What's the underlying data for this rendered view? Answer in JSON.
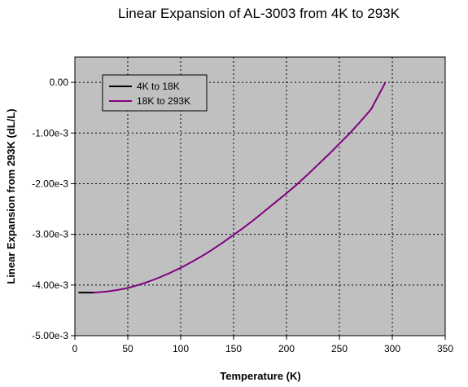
{
  "chart_data": {
    "type": "line",
    "title": "Linear Expansion of AL-3003 from 4K to 293K",
    "xlabel": "Temperature (K)",
    "ylabel": "Linear Expansion from 293K (dL/L)",
    "xlim": [
      0,
      350
    ],
    "ylim": [
      -0.005,
      0.0005
    ],
    "x_ticks": [
      0,
      50,
      100,
      150,
      200,
      250,
      300,
      350
    ],
    "x_tick_labels": [
      "0",
      "50",
      "100",
      "150",
      "200",
      "250",
      "300",
      "350"
    ],
    "y_ticks": [
      0.0,
      -0.001,
      -0.002,
      -0.003,
      -0.004,
      -0.005
    ],
    "y_tick_labels": [
      "0.00",
      "-1.00e-3",
      "-2.00e-3",
      "-3.00e-3",
      "-4.00e-3",
      "-5.00e-3"
    ],
    "grid": true,
    "plot_background": "#c0c0c0",
    "legend_position": "top-left",
    "series": [
      {
        "name": "4K to 18K",
        "color": "#000000",
        "x": [
          4,
          8,
          12,
          15,
          18
        ],
        "y": [
          -0.00415,
          -0.00415,
          -0.00415,
          -0.00415,
          -0.00415
        ]
      },
      {
        "name": "18K to 293K",
        "color": "#800080",
        "x": [
          18,
          30,
          40,
          50,
          60,
          70,
          80,
          90,
          100,
          110,
          120,
          130,
          140,
          150,
          160,
          170,
          180,
          190,
          200,
          210,
          220,
          230,
          240,
          250,
          260,
          270,
          280,
          293
        ],
        "y": [
          -0.00415,
          -0.00413,
          -0.0041,
          -0.00406,
          -0.004,
          -0.00393,
          -0.00385,
          -0.00376,
          -0.00366,
          -0.00355,
          -0.00343,
          -0.0033,
          -0.00316,
          -0.00301,
          -0.00286,
          -0.0027,
          -0.00253,
          -0.00236,
          -0.00219,
          -0.00201,
          -0.00182,
          -0.00162,
          -0.00142,
          -0.00121,
          -0.001,
          -0.00077,
          -0.00053,
          -2e-05
        ]
      }
    ]
  }
}
